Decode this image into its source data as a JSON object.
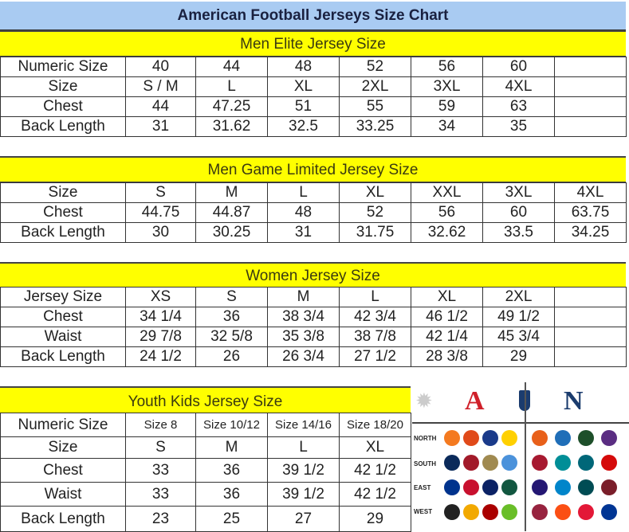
{
  "title": "American Football Jerseys Size Chart",
  "sections": [
    {
      "heading": "Men Elite Jersey Size",
      "rows": [
        [
          "Numeric Size",
          "40",
          "44",
          "48",
          "52",
          "56",
          "60",
          ""
        ],
        [
          "Size",
          "S / M",
          "L",
          "XL",
          "2XL",
          "3XL",
          "4XL",
          ""
        ],
        [
          "Chest",
          "44",
          "47.25",
          "51",
          "55",
          "59",
          "63",
          ""
        ],
        [
          "Back Length",
          "31",
          "31.62",
          "32.5",
          "33.25",
          "34",
          "35",
          ""
        ]
      ]
    },
    {
      "heading": "Men Game Limited Jersey Size",
      "rows": [
        [
          "Size",
          "S",
          "M",
          "L",
          "XL",
          "XXL",
          "3XL",
          "4XL"
        ],
        [
          "Chest",
          "44.75",
          "44.87",
          "48",
          "52",
          "56",
          "60",
          "63.75"
        ],
        [
          "Back Length",
          "30",
          "30.25",
          "31",
          "31.75",
          "32.62",
          "33.5",
          "34.25"
        ]
      ]
    },
    {
      "heading": "Women Jersey Size",
      "rows": [
        [
          "Jersey Size",
          "XS",
          "S",
          "M",
          "L",
          "XL",
          "2XL",
          ""
        ],
        [
          "Chest",
          "34 1/4",
          "36",
          "38 3/4",
          "42 3/4",
          "46 1/2",
          "49 1/2",
          ""
        ],
        [
          "Waist",
          "29 7/8",
          "32 5/8",
          "35 3/8",
          "38 7/8",
          "42 1/4",
          "45 3/4",
          ""
        ],
        [
          "Back Length",
          "24 1/2",
          "26",
          "26 3/4",
          "27 1/2",
          "28 3/8",
          "29",
          ""
        ]
      ]
    },
    {
      "heading": "Youth Kids Jersey Size",
      "rows": [
        [
          "Numeric Size",
          "Size 8",
          "Size 10/12",
          "Size 14/16",
          "Size 18/20"
        ],
        [
          "Size",
          "S",
          "M",
          "L",
          "XL"
        ],
        [
          "Chest",
          "33",
          "36",
          "39 1/2",
          "42 1/2"
        ],
        [
          "Waist",
          "33",
          "36",
          "39 1/2",
          "42 1/2"
        ],
        [
          "Back Length",
          "23",
          "25",
          "27",
          "29"
        ]
      ]
    }
  ],
  "logos": {
    "afc": "A",
    "nfc": "N",
    "divisions": [
      "NORTH",
      "SOUTH",
      "EAST",
      "WEST"
    ],
    "colors": {
      "afc": "#d0202a",
      "nfc": "#1b3c6e",
      "band": "#ffff00",
      "title_bg": "#a9cbf2"
    }
  }
}
